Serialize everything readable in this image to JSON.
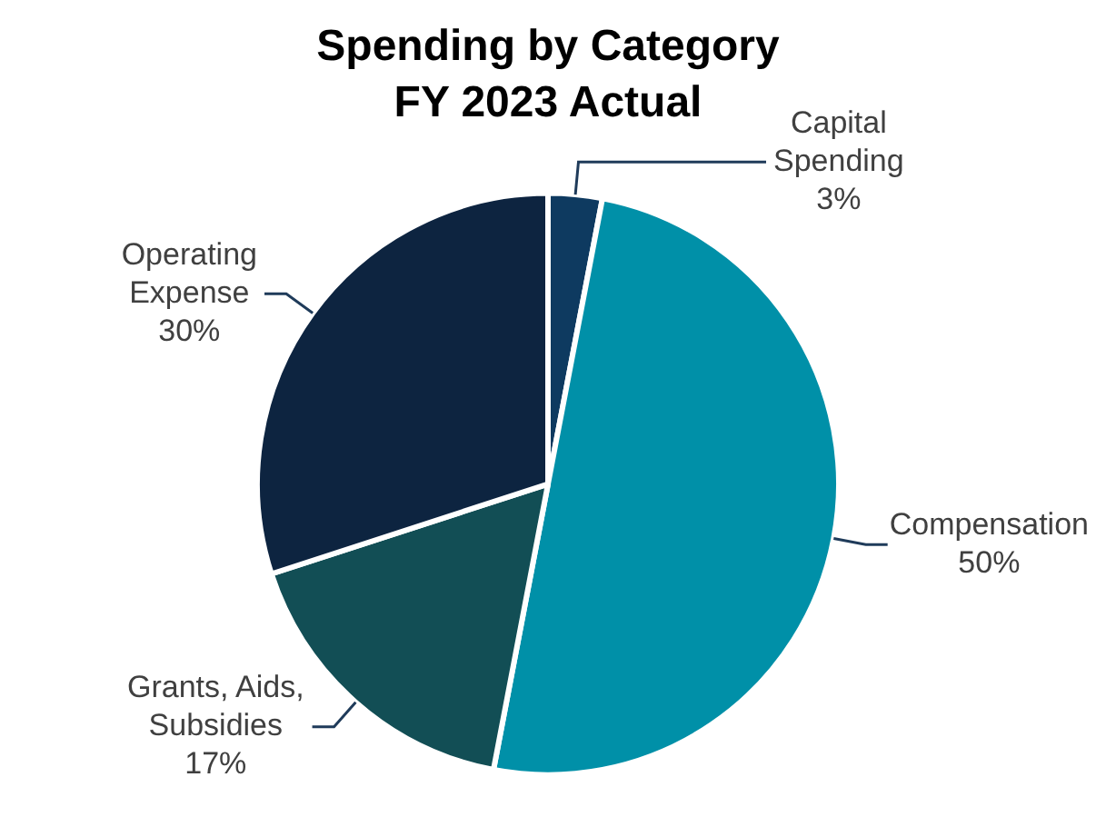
{
  "chart_data": {
    "type": "pie",
    "title": "Spending by Category",
    "subtitle": "FY 2023 Actual",
    "categories": [
      "Capital Spending",
      "Compensation",
      "Grants, Aids, Subsidies",
      "Operating Expense"
    ],
    "values": [
      3,
      50,
      17,
      30
    ],
    "colors": [
      "#0e3a60",
      "#0090a8",
      "#124e55",
      "#0d2440"
    ],
    "value_labels": [
      "3%",
      "50%",
      "17%",
      "30%"
    ],
    "legend": false
  }
}
